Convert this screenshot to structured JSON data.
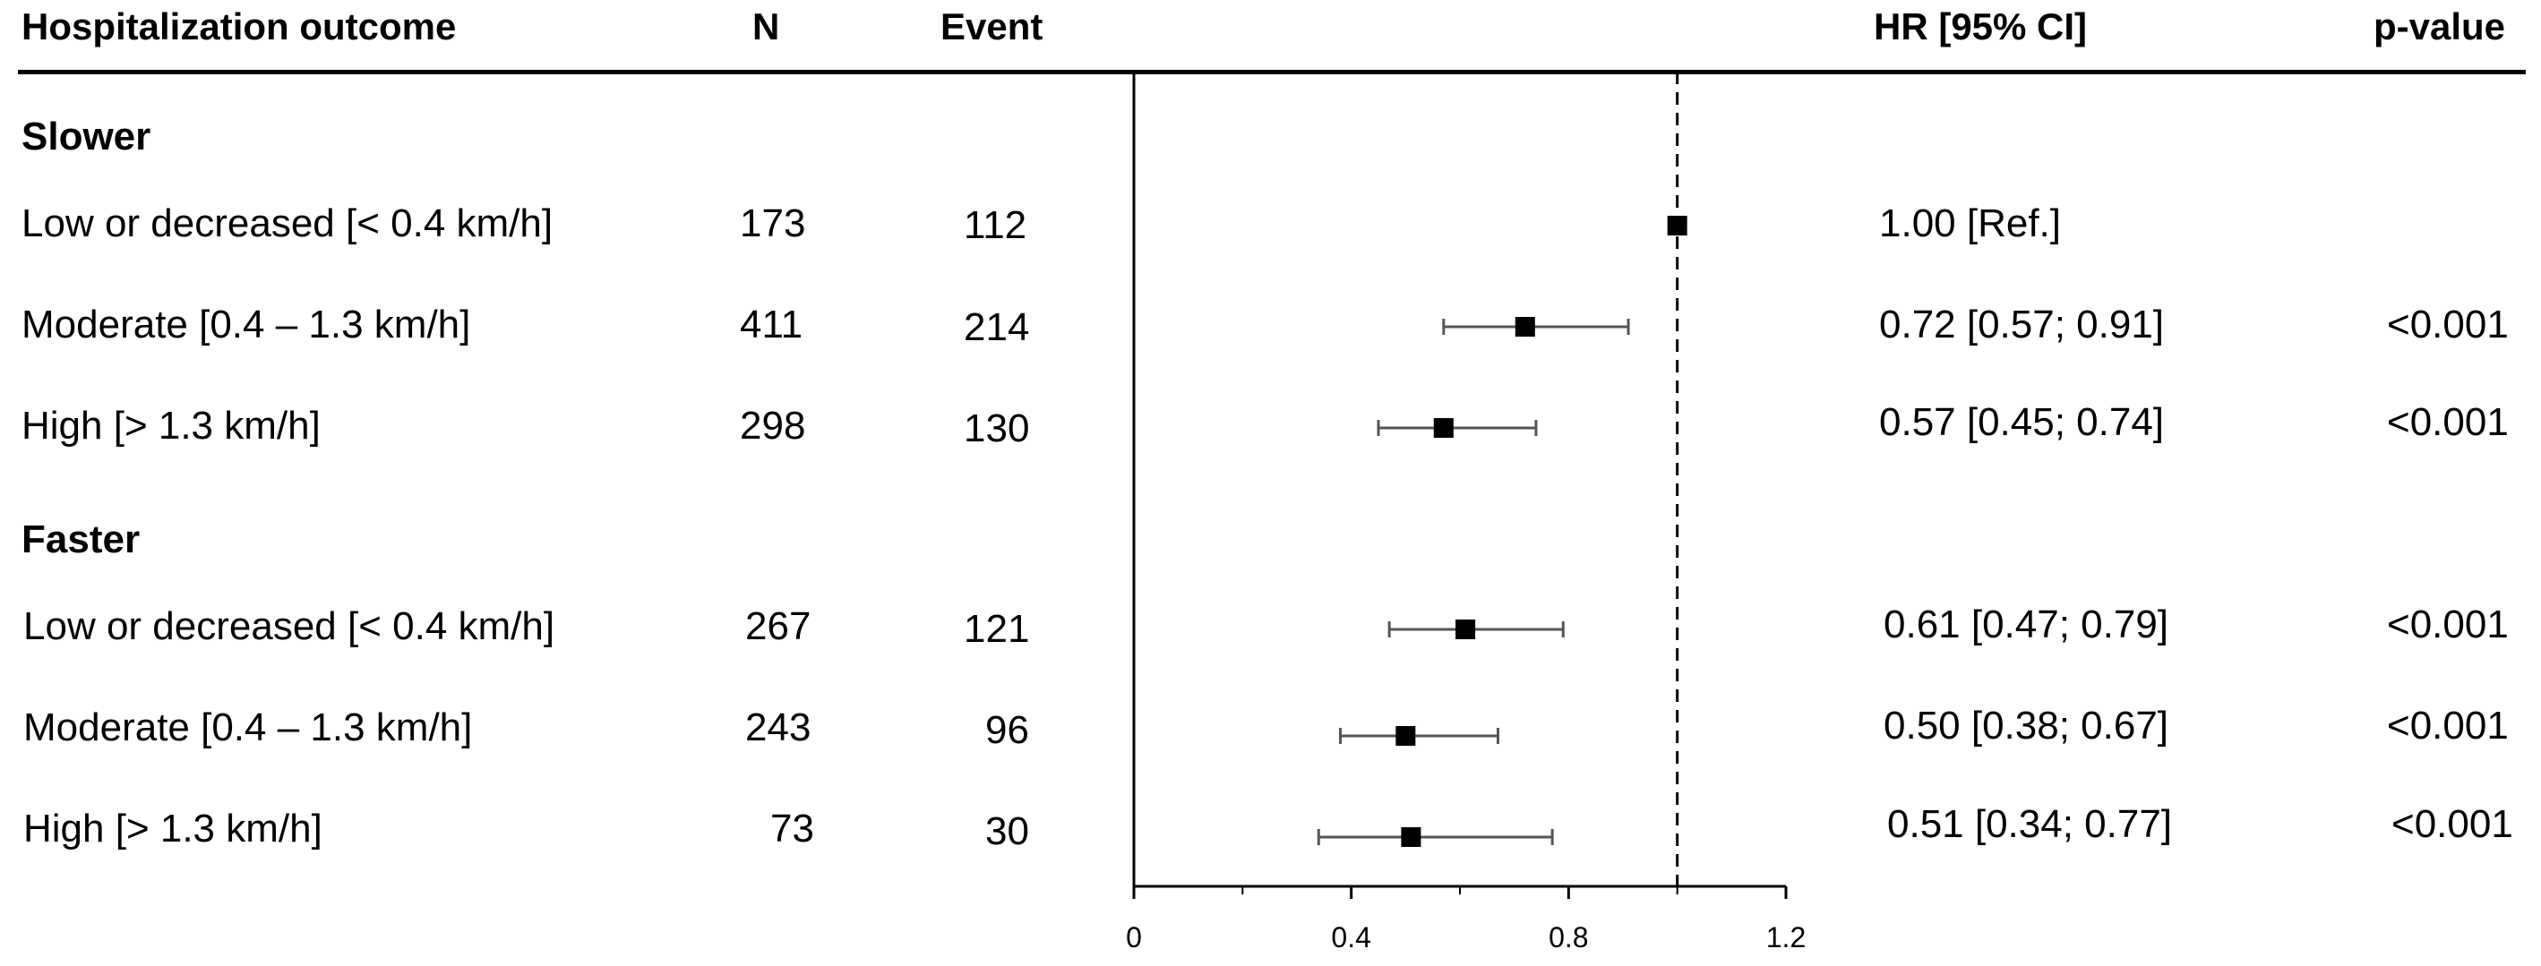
{
  "table": {
    "headers": {
      "outcome": "Hospitalization outcome",
      "n": "N",
      "event": "Event",
      "hr": "HR [95% CI]",
      "p": "p-value"
    },
    "groups": [
      {
        "label": "Slower",
        "rows": [
          {
            "label": "Low or decreased [< 0.4 km/h]",
            "n": "173",
            "event": "112",
            "hr_text": "1.00 [Ref.]",
            "p": ""
          },
          {
            "label": "Moderate [0.4 – 1.3 km/h]",
            "n": "411",
            "event": "214",
            "hr_text": "0.72 [0.57; 0.91]",
            "p": "<0.001"
          },
          {
            "label": "High [> 1.3 km/h]",
            "n": "298",
            "event": "130",
            "hr_text": "0.57 [0.45; 0.74]",
            "p": "<0.001"
          }
        ]
      },
      {
        "label": "Faster",
        "rows": [
          {
            "label": "Low or decreased [< 0.4 km/h]",
            "n": "267",
            "event": "121",
            "hr_text": "0.61 [0.47; 0.79]",
            "p": "<0.001"
          },
          {
            "label": "Moderate [0.4 – 1.3 km/h]",
            "n": "243",
            "event": "96",
            "hr_text": "0.50 [0.38; 0.67]",
            "p": "<0.001"
          },
          {
            "label": "High [> 1.3 km/h]",
            "n": "73",
            "event": "30",
            "hr_text": "0.51 [0.34; 0.77]",
            "p": "<0.001"
          }
        ]
      }
    ]
  },
  "chart_data": {
    "type": "scatter",
    "subtype": "forest",
    "xlim": [
      0,
      1.2
    ],
    "xticks": [
      0,
      0.4,
      0.8,
      1.2
    ],
    "xtick_labels": [
      "0",
      "0.4",
      "0.8",
      "1.2"
    ],
    "reference_line": 1.0,
    "points": [
      {
        "hr": 1.0,
        "lo": null,
        "hi": null
      },
      {
        "hr": 0.72,
        "lo": 0.57,
        "hi": 0.91
      },
      {
        "hr": 0.57,
        "lo": 0.45,
        "hi": 0.74
      },
      {
        "hr": 0.61,
        "lo": 0.47,
        "hi": 0.79
      },
      {
        "hr": 0.5,
        "lo": 0.38,
        "hi": 0.67
      },
      {
        "hr": 0.51,
        "lo": 0.34,
        "hi": 0.77
      }
    ],
    "colors": {
      "marker": "#000000",
      "ci": "#555555",
      "axis": "#000000"
    }
  }
}
